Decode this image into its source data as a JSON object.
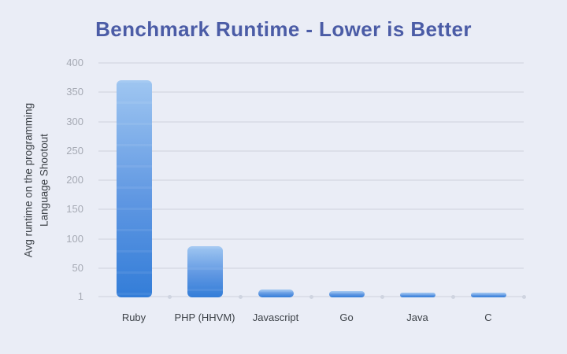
{
  "page": {
    "background": "#eaedf6"
  },
  "chart_data": {
    "type": "bar",
    "title": "Benchmark Runtime - Lower is Better",
    "title_color": "#4b5ca6",
    "categories": [
      "Ruby",
      "PHP (HHVM)",
      "Javascript",
      "Go",
      "Java",
      "C"
    ],
    "values": [
      370,
      87,
      13,
      11,
      6,
      5.5
    ],
    "xlabel": "",
    "ylabel": "Avg runtime on the programming\nLanguage Shootout",
    "yticks": [
      400,
      350,
      300,
      250,
      200,
      150,
      100,
      50,
      1
    ],
    "ylim": [
      0,
      400
    ],
    "grid": true,
    "legend": false,
    "bar_gradient_top": "#9fc6f1",
    "bar_gradient_mid": "#5f97e2",
    "bar_gradient_bottom": "#337dd8",
    "gridline_color": "#dcdfe9",
    "tick_label_color": "#a6aab4",
    "category_label_color": "#3d4248"
  }
}
